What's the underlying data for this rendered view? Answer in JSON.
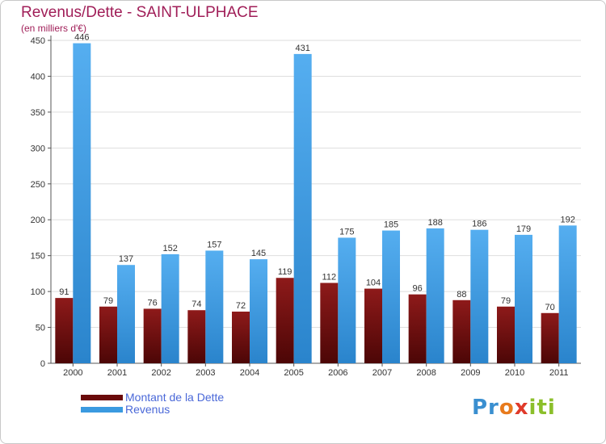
{
  "title": "Revenus/Dette - SAINT-ULPHACE",
  "subtitle": "(en milliers d'€)",
  "colors": {
    "dette": "#7a0e0e",
    "revenus": "#3a9ae0",
    "title": "#a01e58",
    "legend_text": "#4a68d8"
  },
  "legend": {
    "dette": "Montant de la Dette",
    "revenus": "Revenus"
  },
  "logo_text": [
    "Pr",
    "o",
    "x",
    "iti"
  ],
  "chart_data": {
    "type": "bar",
    "categories": [
      "2000",
      "2001",
      "2002",
      "2003",
      "2004",
      "2005",
      "2006",
      "2007",
      "2008",
      "2009",
      "2010",
      "2011"
    ],
    "series": [
      {
        "name": "Montant de la Dette",
        "values": [
          91,
          79,
          76,
          74,
          72,
          119,
          112,
          104,
          96,
          88,
          79,
          70
        ]
      },
      {
        "name": "Revenus",
        "values": [
          446,
          137,
          152,
          157,
          145,
          431,
          175,
          185,
          188,
          186,
          179,
          192
        ]
      }
    ],
    "yticks": [
      0,
      50,
      100,
      150,
      200,
      250,
      300,
      350,
      400,
      450
    ],
    "ylim": [
      0,
      450
    ],
    "grid": true,
    "legend_position": "bottom-left"
  }
}
